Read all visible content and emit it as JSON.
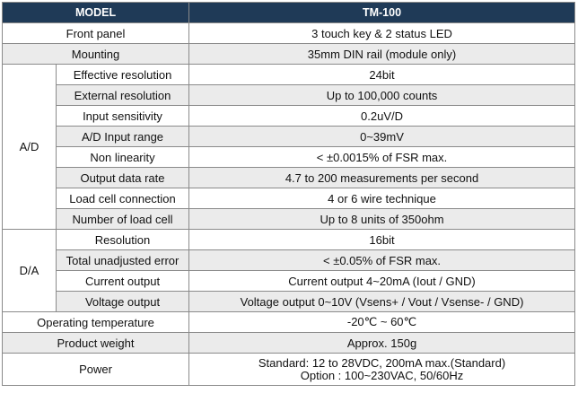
{
  "table": {
    "header": {
      "col1": "MODEL",
      "col2": "TM-100"
    },
    "rows": [
      {
        "label": "Front panel",
        "value": "3 touch key & 2 status LED"
      },
      {
        "label": "Mounting",
        "value": "35mm DIN rail (module only)"
      }
    ],
    "ad": {
      "group": "A/D",
      "rows": [
        {
          "label": "Effective resolution",
          "value": "24bit"
        },
        {
          "label": "External resolution",
          "value": "Up to 100,000 counts"
        },
        {
          "label": "Input sensitivity",
          "value": "0.2uV/D"
        },
        {
          "label": "A/D Input range",
          "value": "0~39mV"
        },
        {
          "label": "Non linearity",
          "value": "< ±0.0015% of FSR max."
        },
        {
          "label": "Output data rate",
          "value": "4.7 to 200 measurements per second"
        },
        {
          "label": "Load cell connection",
          "value": "4 or 6 wire technique"
        },
        {
          "label": "Number of load cell",
          "value": "Up to 8 units of 350ohm"
        }
      ]
    },
    "da": {
      "group": "D/A",
      "rows": [
        {
          "label": "Resolution",
          "value": "16bit"
        },
        {
          "label": "Total unadjusted error",
          "value": "< ±0.05% of FSR max."
        },
        {
          "label": "Current output",
          "value": "Current  output 4~20mA (Iout / GND)"
        },
        {
          "label": "Voltage output",
          "value": "Voltage output 0~10V (Vsens+ / Vout / Vsense- / GND)"
        }
      ]
    },
    "tail": [
      {
        "label": "Operating temperature",
        "value": "-20℃ ~ 60℃"
      },
      {
        "label": "Product weight",
        "value": "Approx. 150g"
      }
    ],
    "power": {
      "label": "Power",
      "line1": "Standard: 12 to 28VDC, 200mA max.(Standard)",
      "line2": "Option : 100~230VAC, 50/60Hz"
    }
  }
}
